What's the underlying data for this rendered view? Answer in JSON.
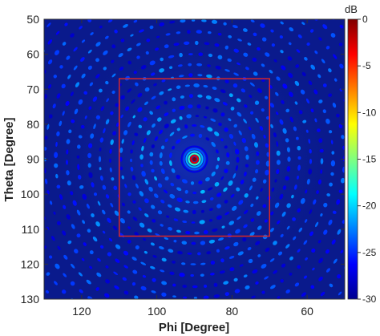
{
  "chart_data": {
    "type": "heatmap",
    "title": "",
    "xlabel": "Phi [Degree]",
    "ylabel": "Theta [Degree]",
    "xlim": [
      130,
      50
    ],
    "ylim": [
      50,
      130
    ],
    "x_reversed": true,
    "y_reversed": true,
    "x_ticks": [
      120,
      100,
      80,
      60
    ],
    "x_tick_labels": [
      "120",
      "100",
      "80",
      "60"
    ],
    "y_ticks": [
      50,
      60,
      70,
      80,
      90,
      100,
      110,
      120,
      130
    ],
    "y_tick_labels": [
      "50",
      "60",
      "70",
      "80",
      "90",
      "100",
      "110",
      "120",
      "130"
    ],
    "colorbar": {
      "unit": "dB",
      "range": [
        -30,
        0
      ],
      "ticks": [
        0,
        -5,
        -10,
        -15,
        -20,
        -25,
        -30
      ],
      "tick_labels": [
        "0",
        "-5",
        "-10",
        "-15",
        "-20",
        "-25",
        "-30"
      ],
      "colormap": "jet"
    },
    "main_beam": {
      "phi": 90,
      "theta": 90,
      "level_db": 0
    },
    "region_box": {
      "phi_range": [
        70,
        110
      ],
      "theta_range": [
        67,
        112
      ],
      "color": "#d62728"
    },
    "background_level_db": -30,
    "sidelobe_level_db_range": [
      -28,
      -20
    ],
    "grid": false,
    "legend": "none"
  },
  "colors": {
    "background": "#0a1a8c",
    "box": "#d62728"
  }
}
